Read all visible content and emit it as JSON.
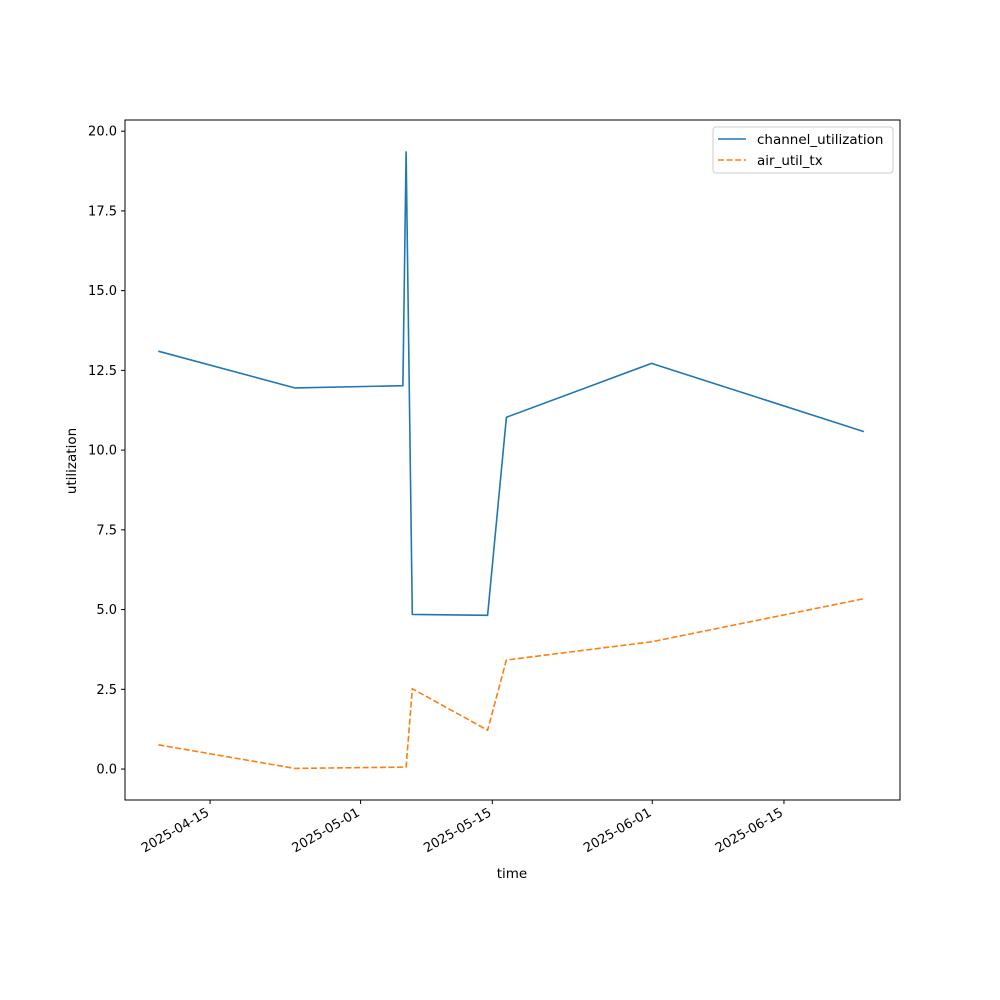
{
  "chart_data": {
    "type": "line",
    "title": "",
    "xlabel": "time",
    "ylabel": "utilization",
    "x_scale": "date",
    "xlim": [
      "2025-04-05T23:00:00",
      "2025-06-27T08:00:00"
    ],
    "ylim": [
      -0.97,
      20.35
    ],
    "x_ticks": [
      "2025-04-15",
      "2025-05-01",
      "2025-05-15",
      "2025-06-01",
      "2025-06-15"
    ],
    "y_ticks": [
      0.0,
      2.5,
      5.0,
      7.5,
      10.0,
      12.5,
      15.0,
      17.5,
      20.0
    ],
    "y_tick_labels": [
      "0.0",
      "2.5",
      "5.0",
      "7.5",
      "10.0",
      "12.5",
      "15.0",
      "17.5",
      "20.0"
    ],
    "grid": false,
    "legend_position": "top-right",
    "series": [
      {
        "name": "channel_utilization",
        "color": "#1f77b4",
        "style": "solid",
        "points": [
          [
            "2025-04-09T12:00:00",
            13.1
          ],
          [
            "2025-04-24T00:00:00",
            11.95
          ],
          [
            "2025-05-05T12:00:00",
            12.02
          ],
          [
            "2025-05-05T20:00:00",
            19.35
          ],
          [
            "2025-05-06T12:00:00",
            4.85
          ],
          [
            "2025-05-14T12:00:00",
            4.82
          ],
          [
            "2025-05-16T12:00:00",
            11.03
          ],
          [
            "2025-05-31T22:00:00",
            12.72
          ],
          [
            "2025-06-23T12:00:00",
            10.58
          ]
        ]
      },
      {
        "name": "air_util_tx",
        "color": "#ff7f0e",
        "style": "dashed",
        "points": [
          [
            "2025-04-09T12:00:00",
            0.76
          ],
          [
            "2025-04-24T00:00:00",
            0.02
          ],
          [
            "2025-05-05T20:00:00",
            0.06
          ],
          [
            "2025-05-06T12:00:00",
            2.52
          ],
          [
            "2025-05-14T12:00:00",
            1.22
          ],
          [
            "2025-05-16T12:00:00",
            3.42
          ],
          [
            "2025-05-31T22:00:00",
            3.99
          ],
          [
            "2025-06-23T12:00:00",
            5.34
          ]
        ]
      }
    ]
  }
}
